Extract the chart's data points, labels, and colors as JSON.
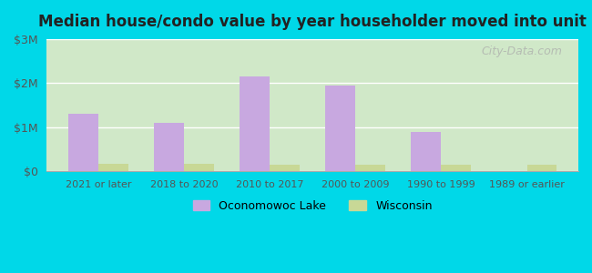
{
  "title": "Median house/condo value by year householder moved into unit",
  "categories": [
    "2021 or later",
    "2018 to 2020",
    "2010 to 2017",
    "2000 to 2009",
    "1990 to 1999",
    "1989 or earlier"
  ],
  "oconomowoc_values": [
    1300000,
    1100000,
    2150000,
    1950000,
    900000,
    0
  ],
  "wisconsin_values": [
    175000,
    165000,
    160000,
    155000,
    155000,
    145000
  ],
  "oconomowoc_color": "#c8a8e0",
  "wisconsin_color": "#c8d896",
  "background_outer": "#00d8e8",
  "background_inner_top": "#e8f4f0",
  "background_inner_bottom": "#d0e8c8",
  "yticks": [
    0,
    1000000,
    2000000,
    3000000
  ],
  "ylabels": [
    "$0",
    "$1M",
    "$2M",
    "$3M"
  ],
  "ylim": [
    0,
    3000000
  ],
  "legend_labels": [
    "Oconomowoc Lake",
    "Wisconsin"
  ],
  "watermark": "City-Data.com"
}
